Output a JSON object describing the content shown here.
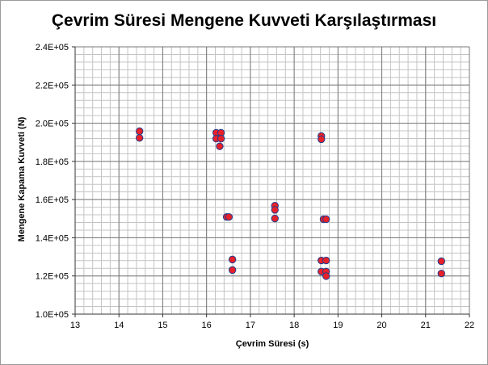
{
  "chart_data": {
    "type": "scatter",
    "title": "Çevrim Süresi  Mengene Kuvveti Karşılaştırması",
    "xlabel": "Çevrim Süresi (s)",
    "ylabel": "Mengene Kapama  Kuvveti (N)",
    "xlim": [
      13,
      22
    ],
    "ylim": [
      100000,
      240000
    ],
    "x_ticks": [
      "13",
      "14",
      "15",
      "16",
      "17",
      "18",
      "19",
      "20",
      "21",
      "22"
    ],
    "y_ticks": [
      "1.0E+05",
      "1.2E+05",
      "1.4E+05",
      "1.6E+05",
      "1.8E+05",
      "2.0E+05",
      "2.2E+05",
      "2.4E+05"
    ],
    "grid": true,
    "legend": "none",
    "marker_color": "#e8202a",
    "marker_edge": "#1f3f8f",
    "points": [
      {
        "x": 14.47,
        "y": 195800
      },
      {
        "x": 14.47,
        "y": 192300
      },
      {
        "x": 16.22,
        "y": 195000
      },
      {
        "x": 16.33,
        "y": 195000
      },
      {
        "x": 16.22,
        "y": 191900
      },
      {
        "x": 16.33,
        "y": 191900
      },
      {
        "x": 16.3,
        "y": 187900
      },
      {
        "x": 16.46,
        "y": 150900
      },
      {
        "x": 16.51,
        "y": 150900
      },
      {
        "x": 16.59,
        "y": 128600
      },
      {
        "x": 16.59,
        "y": 123100
      },
      {
        "x": 17.56,
        "y": 156800
      },
      {
        "x": 17.56,
        "y": 154600
      },
      {
        "x": 17.56,
        "y": 150100
      },
      {
        "x": 18.62,
        "y": 193300
      },
      {
        "x": 18.62,
        "y": 191600
      },
      {
        "x": 18.67,
        "y": 149700
      },
      {
        "x": 18.73,
        "y": 149700
      },
      {
        "x": 18.62,
        "y": 128100
      },
      {
        "x": 18.73,
        "y": 128100
      },
      {
        "x": 18.62,
        "y": 122300
      },
      {
        "x": 18.73,
        "y": 122300
      },
      {
        "x": 18.73,
        "y": 119900
      },
      {
        "x": 21.36,
        "y": 127700
      },
      {
        "x": 21.36,
        "y": 121300
      }
    ]
  }
}
